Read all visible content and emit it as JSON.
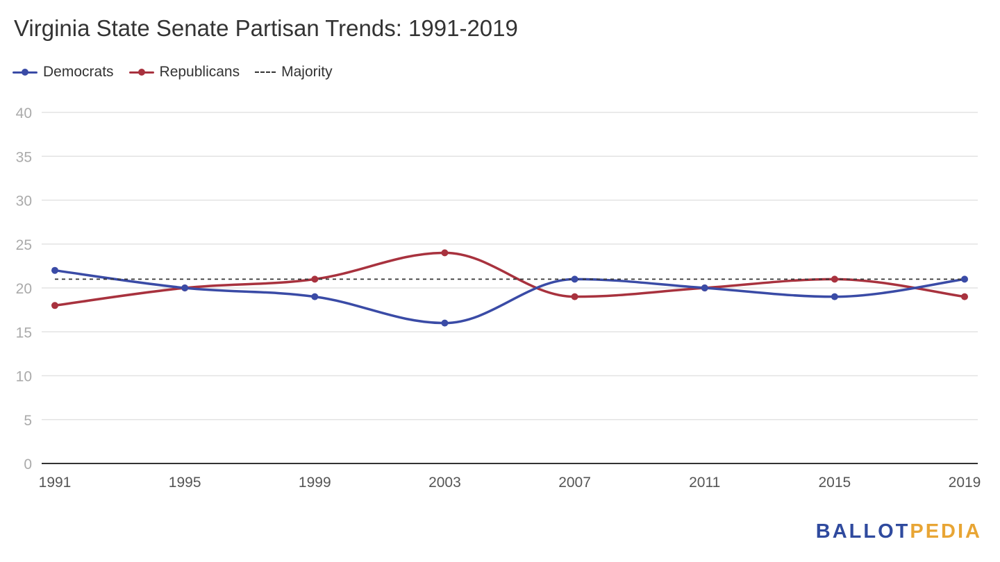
{
  "title": "Virginia State Senate Partisan Trends: 1991-2019",
  "legend": {
    "items": [
      {
        "label": "Democrats",
        "color": "#3a4ba6",
        "style": "line-dot"
      },
      {
        "label": "Republicans",
        "color": "#a8323e",
        "style": "line-dot"
      },
      {
        "label": "Majority",
        "color": "#333333",
        "style": "dashed"
      }
    ],
    "placement": "top-left"
  },
  "logo": {
    "part1": "BALLOT",
    "part2": "PEDIA",
    "color1": "#2f4a9e",
    "color2": "#e8a534"
  },
  "chart_data": {
    "type": "line",
    "title": "Virginia State Senate Partisan Trends: 1991-2019",
    "xlabel": "",
    "ylabel": "",
    "categories": [
      "1991",
      "1995",
      "1999",
      "2003",
      "2007",
      "2011",
      "2015",
      "2019"
    ],
    "series": [
      {
        "name": "Democrats",
        "color": "#3a4ba6",
        "values": [
          22,
          20,
          19,
          16,
          21,
          20,
          19,
          21
        ]
      },
      {
        "name": "Republicans",
        "color": "#a8323e",
        "values": [
          18,
          20,
          21,
          24,
          19,
          20,
          21,
          19
        ]
      },
      {
        "name": "Majority",
        "color": "#333333",
        "dashed": true,
        "values": [
          21,
          21,
          21,
          21,
          21,
          21,
          21,
          21
        ]
      }
    ],
    "ylim": [
      0,
      40
    ],
    "yticks": [
      0,
      5,
      10,
      15,
      20,
      25,
      30,
      35,
      40
    ],
    "grid": true,
    "smooth": true
  }
}
